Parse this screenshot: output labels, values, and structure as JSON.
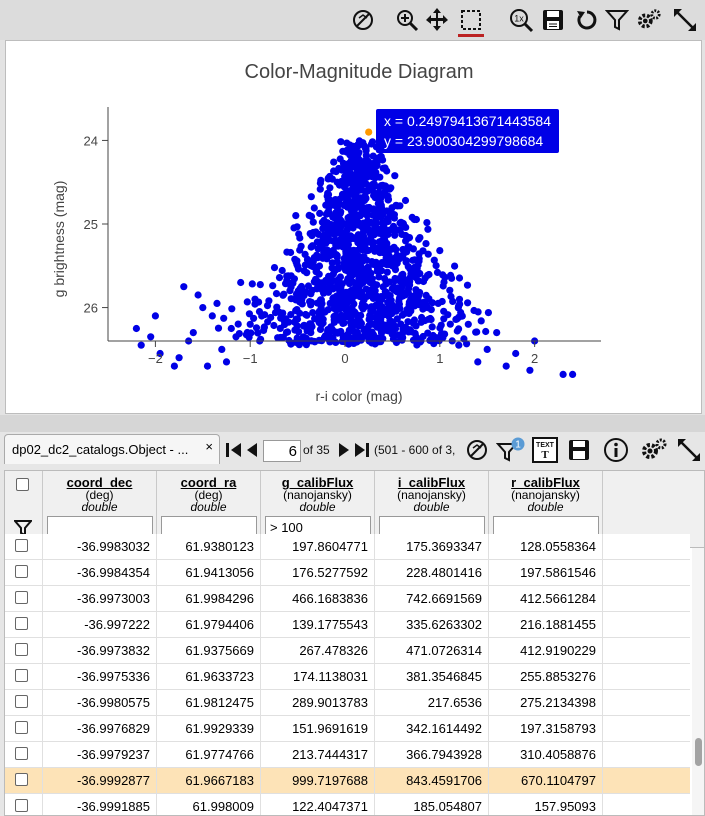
{
  "chart_data": {
    "type": "scatter",
    "title": "Color-Magnitude Diagram",
    "xlabel": "r-i color (mag)",
    "ylabel": "g brightness (mag)",
    "xlim": [
      -2.5,
      2.7
    ],
    "ylim": [
      26.4,
      23.6
    ],
    "y_inverted": true,
    "xticks": [
      -2,
      -1,
      0,
      1,
      2
    ],
    "yticks": [
      24,
      25,
      26
    ],
    "point_color": "#0000e6",
    "highlight_color": "#ff9900",
    "highlight_point": {
      "x": 0.24979413671443584,
      "y": 23.900304299798684
    },
    "tooltip": {
      "x_text": "x = 0.24979413671443584",
      "y_text": "y = 23.900304299798684"
    },
    "outliers": [
      {
        "x": -2.2,
        "y": 26.25
      },
      {
        "x": -2.05,
        "y": 26.35
      },
      {
        "x": -2.15,
        "y": 26.45
      },
      {
        "x": -1.95,
        "y": 26.55
      },
      {
        "x": -2.0,
        "y": 26.1
      },
      {
        "x": -1.7,
        "y": 25.75
      },
      {
        "x": -1.55,
        "y": 25.85
      },
      {
        "x": -1.8,
        "y": 26.7
      },
      {
        "x": -1.75,
        "y": 26.6
      },
      {
        "x": -1.65,
        "y": 26.4
      },
      {
        "x": -1.5,
        "y": 26.0
      },
      {
        "x": -1.35,
        "y": 25.95
      },
      {
        "x": -1.6,
        "y": 26.3
      },
      {
        "x": -1.45,
        "y": 26.7
      },
      {
        "x": -1.4,
        "y": 26.1
      },
      {
        "x": -1.3,
        "y": 26.5
      },
      {
        "x": -1.2,
        "y": 26.25
      },
      {
        "x": -1.1,
        "y": 25.7
      },
      {
        "x": -1.0,
        "y": 26.2
      },
      {
        "x": -0.95,
        "y": 25.9
      },
      {
        "x": -1.25,
        "y": 26.65
      },
      {
        "x": -0.9,
        "y": 26.4
      },
      {
        "x": -1.15,
        "y": 26.35
      },
      {
        "x": 1.8,
        "y": 26.55
      },
      {
        "x": 2.0,
        "y": 26.4
      },
      {
        "x": 2.3,
        "y": 26.8
      },
      {
        "x": 2.4,
        "y": 26.8
      },
      {
        "x": 1.95,
        "y": 26.75
      },
      {
        "x": 1.5,
        "y": 26.5
      },
      {
        "x": 1.7,
        "y": 26.7
      },
      {
        "x": 1.6,
        "y": 26.3
      },
      {
        "x": 1.4,
        "y": 26.65
      },
      {
        "x": 1.3,
        "y": 26.2
      },
      {
        "x": 1.2,
        "y": 26.45
      }
    ]
  },
  "toolbar": {
    "icons": [
      "no-select-icon",
      "zoom-in-icon",
      "pan-icon",
      "select-area-icon",
      "zoom-1x-icon",
      "save-icon",
      "restore-icon",
      "filter-icon",
      "settings-icon",
      "expand-icon"
    ],
    "zoom_label": "1x"
  },
  "table": {
    "tab_label": "dp02_dc2_catalogs.Object - ...",
    "tab_close": "×",
    "page_value": "6",
    "page_of": "of 35",
    "page_range": "(501 - 600 of 3,",
    "filter_badge": "1",
    "text_icon_label": "TEXT",
    "columns": [
      {
        "name": "coord_dec",
        "unit": "(deg)",
        "type": "double",
        "filter": ""
      },
      {
        "name": "coord_ra",
        "unit": "(deg)",
        "type": "double",
        "filter": ""
      },
      {
        "name": "g_calibFlux",
        "unit": "(nanojansky)",
        "type": "double",
        "filter": "> 100"
      },
      {
        "name": "i_calibFlux",
        "unit": "(nanojansky)",
        "type": "double",
        "filter": ""
      },
      {
        "name": "r_calibFlux",
        "unit": "(nanojansky)",
        "type": "double",
        "filter": ""
      }
    ],
    "rows": [
      {
        "cells": [
          "-36.9983032",
          "61.9380123",
          "197.8604771",
          "175.3693347",
          "128.0558364"
        ],
        "highlighted": false
      },
      {
        "cells": [
          "-36.9984354",
          "61.9413056",
          "176.5277592",
          "228.4801416",
          "197.5861546"
        ],
        "highlighted": false
      },
      {
        "cells": [
          "-36.9973003",
          "61.9984296",
          "466.1683836",
          "742.6691569",
          "412.5661284"
        ],
        "highlighted": false
      },
      {
        "cells": [
          "-36.997222",
          "61.9794406",
          "139.1775543",
          "335.6263302",
          "216.1881455"
        ],
        "highlighted": false
      },
      {
        "cells": [
          "-36.9973832",
          "61.9375669",
          "267.478326",
          "471.0726314",
          "412.9190229"
        ],
        "highlighted": false
      },
      {
        "cells": [
          "-36.9975336",
          "61.9633723",
          "174.1138031",
          "381.3546845",
          "255.8853276"
        ],
        "highlighted": false
      },
      {
        "cells": [
          "-36.9980575",
          "61.9812475",
          "289.9013783",
          "217.6536",
          "275.2134398"
        ],
        "highlighted": false
      },
      {
        "cells": [
          "-36.9976829",
          "61.9929339",
          "151.9691619",
          "342.1614492",
          "197.3158793"
        ],
        "highlighted": false
      },
      {
        "cells": [
          "-36.9979237",
          "61.9774766",
          "213.7444317",
          "366.7943928",
          "310.4058876"
        ],
        "highlighted": false
      },
      {
        "cells": [
          "-36.9992877",
          "61.9667183",
          "999.7197688",
          "843.4591706",
          "670.1104797"
        ],
        "highlighted": true
      },
      {
        "cells": [
          "-36.9991885",
          "61.998009",
          "122.4047371",
          "185.054807",
          "157.95093"
        ],
        "highlighted": false
      }
    ]
  }
}
